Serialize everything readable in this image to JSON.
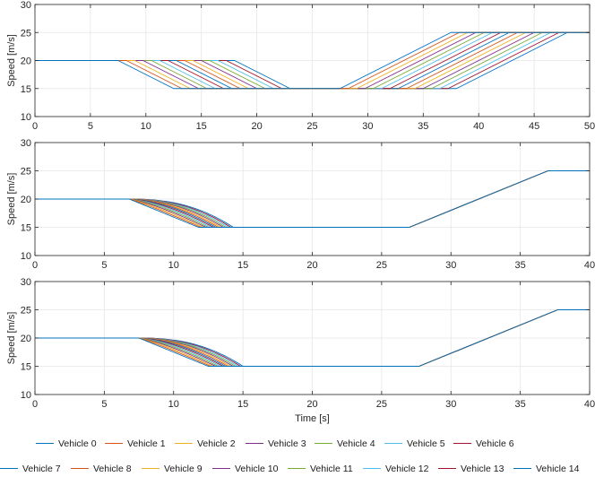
{
  "chart_data": [
    {
      "type": "line",
      "panel": 1,
      "title": "",
      "xlabel": "",
      "ylabel": "Speed [m/s]",
      "xlim": [
        0,
        50
      ],
      "ylim": [
        10,
        30
      ],
      "xticks": [
        0,
        5,
        10,
        15,
        20,
        25,
        30,
        35,
        40,
        45,
        50
      ],
      "yticks": [
        10,
        15,
        20,
        25,
        30
      ],
      "grid": true,
      "series_model": {
        "count": 15,
        "initial_speed": 20,
        "low_speed": 15,
        "final_speed": 25,
        "t_end": 50,
        "decel_start_first": 7.5,
        "decel_start_last": 18.0,
        "low_reached_first": 12.5,
        "low_reached_last": 23.0,
        "accel_start_first": 27.5,
        "accel_start_last": 38.0,
        "high_reached_first": 37.5,
        "high_reached_last": 48.0
      }
    },
    {
      "type": "line",
      "panel": 2,
      "title": "",
      "xlabel": "",
      "ylabel": "Speed [m/s]",
      "xlim": [
        0,
        40
      ],
      "ylim": [
        10,
        30
      ],
      "xticks": [
        0,
        5,
        10,
        15,
        20,
        25,
        30,
        35,
        40
      ],
      "yticks": [
        10,
        15,
        20,
        25,
        30
      ],
      "grid": true,
      "series_model": {
        "count": 15,
        "initial_speed": 20,
        "low_speed": 15,
        "final_speed": 25,
        "t_end": 40,
        "decel_start": 6.8,
        "low_reached_first": 11.8,
        "low_reached_last": 14.3,
        "accel_start": 27.0,
        "high_reached": 37.0
      }
    },
    {
      "type": "line",
      "panel": 3,
      "title": "",
      "xlabel": "Time [s]",
      "ylabel": "Speed [m/s]",
      "xlim": [
        0,
        40
      ],
      "ylim": [
        10,
        30
      ],
      "xticks": [
        0,
        5,
        10,
        15,
        20,
        25,
        30,
        35,
        40
      ],
      "yticks": [
        10,
        15,
        20,
        25,
        30
      ],
      "grid": true,
      "series_model": {
        "count": 15,
        "initial_speed": 20,
        "low_speed": 15,
        "final_speed": 25,
        "t_end": 40,
        "decel_start": 7.5,
        "low_reached_first": 12.5,
        "low_reached_last": 15.0,
        "accel_start": 27.7,
        "high_reached": 37.7
      }
    }
  ],
  "legend": {
    "placement": "bottom",
    "entries": [
      {
        "name": "Vehicle 0",
        "color": "#0072BD"
      },
      {
        "name": "Vehicle 1",
        "color": "#D95319"
      },
      {
        "name": "Vehicle 2",
        "color": "#EDB120"
      },
      {
        "name": "Vehicle 3",
        "color": "#7E2F8E"
      },
      {
        "name": "Vehicle 4",
        "color": "#77AC30"
      },
      {
        "name": "Vehicle 5",
        "color": "#4DBEEE"
      },
      {
        "name": "Vehicle 6",
        "color": "#A2142F"
      },
      {
        "name": "Vehicle 7",
        "color": "#0072BD"
      },
      {
        "name": "Vehicle 8",
        "color": "#D95319"
      },
      {
        "name": "Vehicle 9",
        "color": "#EDB120"
      },
      {
        "name": "Vehicle 10",
        "color": "#7E2F8E"
      },
      {
        "name": "Vehicle 11",
        "color": "#77AC30"
      },
      {
        "name": "Vehicle 12",
        "color": "#4DBEEE"
      },
      {
        "name": "Vehicle 13",
        "color": "#A2142F"
      },
      {
        "name": "Vehicle 14",
        "color": "#0072BD"
      }
    ]
  }
}
